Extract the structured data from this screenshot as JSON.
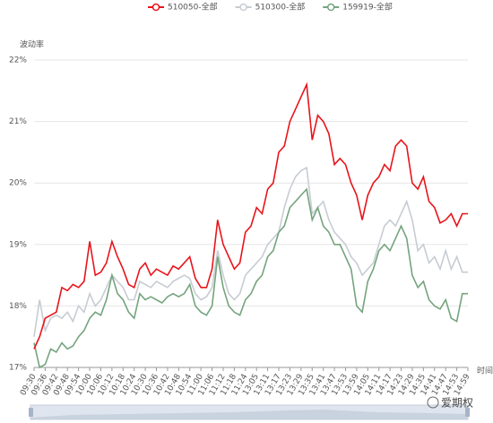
{
  "chart_data": {
    "type": "line",
    "y_label": "波动率",
    "x_label": "时间",
    "watermark": "爱期权",
    "categories": [
      "09:30",
      null,
      "09:36",
      null,
      "09:42",
      null,
      "09:48",
      null,
      "09:54",
      null,
      "10:00",
      null,
      "10:06",
      null,
      "10:12",
      null,
      "10:18",
      null,
      "10:24",
      null,
      "10:30",
      null,
      "10:36",
      null,
      "10:42",
      null,
      "10:48",
      null,
      "10:54",
      null,
      "11:00",
      null,
      "11:06",
      null,
      "11:12",
      null,
      "11:18",
      null,
      "11:24",
      null,
      "13:05",
      null,
      "13:11",
      null,
      "13:17",
      null,
      "13:23",
      null,
      "13:29",
      null,
      "13:35",
      null,
      "13:41",
      null,
      "13:47",
      null,
      "13:53",
      null,
      "13:59",
      null,
      "14:05",
      null,
      "14:11",
      null,
      "14:17",
      null,
      "14:23",
      null,
      "14:29",
      null,
      "14:35",
      null,
      "14:41",
      null,
      "14:47",
      null,
      "14:53",
      null,
      "14:59"
    ],
    "series": [
      {
        "name": "510050-全部",
        "color": "#e8141b",
        "values": [
          17.3,
          17.5,
          17.8,
          17.85,
          17.9,
          18.3,
          18.25,
          18.35,
          18.3,
          18.4,
          19.05,
          18.5,
          18.55,
          18.7,
          19.05,
          18.8,
          18.6,
          18.35,
          18.3,
          18.6,
          18.7,
          18.5,
          18.6,
          18.55,
          18.5,
          18.65,
          18.6,
          18.7,
          18.8,
          18.45,
          18.3,
          18.3,
          18.6,
          19.4,
          19.0,
          18.8,
          18.6,
          18.7,
          19.2,
          19.3,
          19.6,
          19.5,
          19.9,
          20.0,
          20.5,
          20.6,
          21.0,
          21.2,
          21.4,
          21.6,
          20.7,
          21.1,
          21.0,
          20.8,
          20.3,
          20.4,
          20.3,
          20.0,
          19.8,
          19.4,
          19.8,
          20.0,
          20.1,
          20.3,
          20.2,
          20.6,
          20.7,
          20.6,
          20.0,
          19.9,
          20.1,
          19.7,
          19.6,
          19.35,
          19.4,
          19.5,
          19.3,
          19.5,
          19.5
        ]
      },
      {
        "name": "510300-全部",
        "color": "#c7ccd3",
        "values": [
          17.5,
          18.1,
          17.6,
          17.8,
          17.85,
          17.8,
          17.9,
          17.75,
          18.0,
          17.9,
          18.2,
          18.0,
          18.1,
          18.3,
          18.5,
          18.4,
          18.3,
          18.1,
          18.1,
          18.4,
          18.35,
          18.3,
          18.4,
          18.35,
          18.3,
          18.4,
          18.45,
          18.5,
          18.45,
          18.2,
          18.1,
          18.15,
          18.3,
          18.9,
          18.5,
          18.2,
          18.1,
          18.2,
          18.5,
          18.6,
          18.7,
          18.8,
          19.0,
          19.1,
          19.2,
          19.6,
          19.9,
          20.1,
          20.2,
          20.25,
          19.5,
          19.6,
          19.7,
          19.4,
          19.2,
          19.1,
          19.0,
          18.8,
          18.7,
          18.5,
          18.6,
          18.7,
          19.0,
          19.3,
          19.4,
          19.3,
          19.5,
          19.7,
          19.4,
          18.9,
          19.0,
          18.7,
          18.8,
          18.6,
          18.9,
          18.6,
          18.8,
          18.55,
          18.55
        ]
      },
      {
        "name": "159919-全部",
        "color": "#74a47e",
        "values": [
          17.4,
          17.0,
          17.05,
          17.3,
          17.25,
          17.4,
          17.3,
          17.35,
          17.5,
          17.6,
          17.8,
          17.9,
          17.85,
          18.1,
          18.5,
          18.2,
          18.1,
          17.9,
          17.8,
          18.2,
          18.1,
          18.15,
          18.1,
          18.05,
          18.15,
          18.2,
          18.15,
          18.2,
          18.35,
          18.0,
          17.9,
          17.85,
          18.0,
          18.8,
          18.3,
          18.0,
          17.9,
          17.85,
          18.1,
          18.2,
          18.4,
          18.5,
          18.8,
          18.9,
          19.2,
          19.3,
          19.6,
          19.7,
          19.8,
          19.9,
          19.4,
          19.6,
          19.3,
          19.2,
          19.0,
          19.0,
          18.8,
          18.6,
          18.0,
          17.9,
          18.4,
          18.6,
          18.9,
          19.0,
          18.9,
          19.1,
          19.3,
          19.1,
          18.5,
          18.3,
          18.4,
          18.1,
          18.0,
          17.95,
          18.1,
          17.8,
          17.75,
          18.2,
          18.2
        ]
      }
    ],
    "ylim": [
      17,
      22
    ],
    "yticks": [
      {
        "value": 17,
        "label": "17%"
      },
      {
        "value": 18,
        "label": "18%"
      },
      {
        "value": 19,
        "label": "19%"
      },
      {
        "value": 20,
        "label": "20%"
      },
      {
        "value": 21,
        "label": "21%"
      },
      {
        "value": 22,
        "label": "22%"
      }
    ],
    "grid": true
  }
}
